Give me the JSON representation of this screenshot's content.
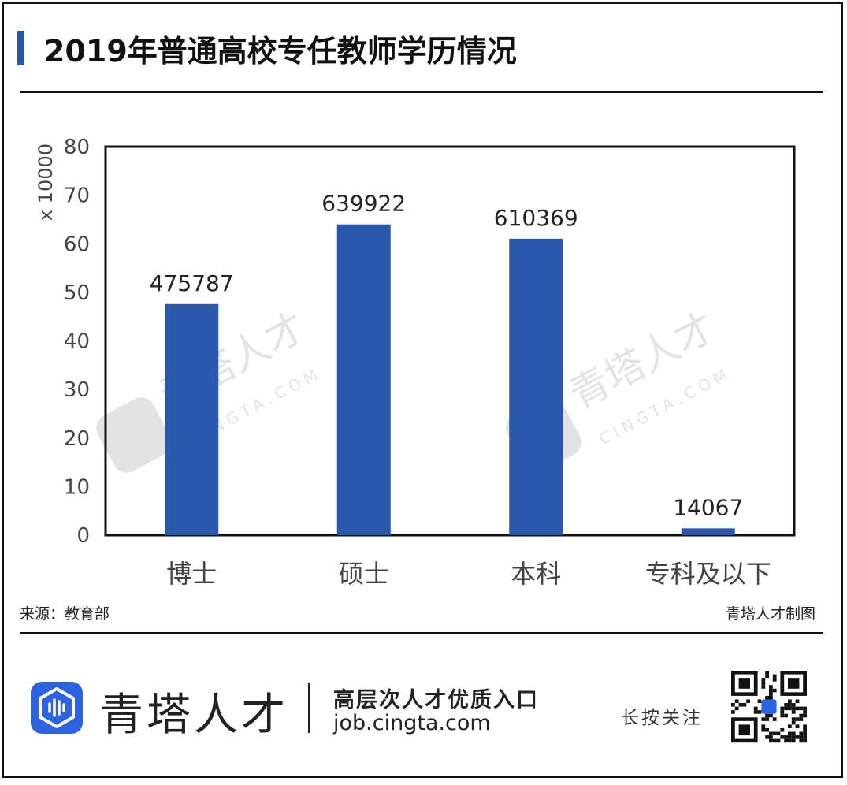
{
  "header": {
    "title": "2019年普通高校专任教师学历情况"
  },
  "chart_data": {
    "type": "bar",
    "title": "2019年普通高校专任教师学历情况",
    "ylabel": "x 10000",
    "xlabel": "",
    "categories": [
      "博士",
      "硕士",
      "本科",
      "专科及以下"
    ],
    "values": [
      475787,
      639922,
      610369,
      14067
    ],
    "data_labels": [
      "475787",
      "639922",
      "610369",
      "14067"
    ],
    "ylim": [
      0,
      80
    ],
    "yticks": [
      0,
      10,
      20,
      30,
      40,
      50,
      60,
      70,
      80
    ],
    "y_unit_divisor": 10000,
    "grid": false,
    "legend": "none",
    "bar_color": "#2a58ad"
  },
  "footer": {
    "source": "来源：教育部",
    "credit": "青塔人才制图",
    "brand_name": "青塔人才",
    "slogan": "高层次人才优质入口",
    "url": "job.cingta.com",
    "follow": "长按关注",
    "logo_icon": "cingta-logo-icon",
    "qr_icon": "qr-code-icon"
  },
  "watermark": {
    "text": "青塔人才",
    "domain": "CINGTA.COM"
  },
  "colors": {
    "accent": "#2a58ad",
    "logo": "#2b63e0",
    "text": "#222222"
  }
}
